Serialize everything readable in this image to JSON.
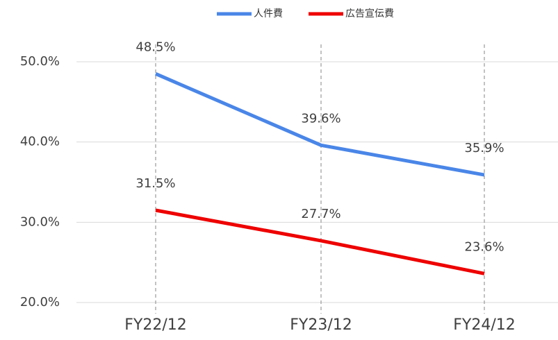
{
  "chart_data": {
    "type": "line",
    "categories": [
      "FY22/12",
      "FY23/12",
      "FY24/12"
    ],
    "series": [
      {
        "name": "人件費",
        "color": "#4a86e8",
        "values": [
          48.5,
          39.6,
          35.9
        ],
        "value_labels": [
          "48.5%",
          "39.6%",
          "35.9%"
        ]
      },
      {
        "name": "広告宣伝費",
        "color": "#ee0000",
        "values": [
          31.5,
          27.7,
          23.6
        ],
        "value_labels": [
          "31.5%",
          "27.7%",
          "23.6%"
        ]
      }
    ],
    "ylim": [
      20,
      50
    ],
    "yticks": [
      {
        "value": 20,
        "label": "20.0%"
      },
      {
        "value": 30,
        "label": "30.0%"
      },
      {
        "value": 40,
        "label": "40.0%"
      },
      {
        "value": 50,
        "label": "50.0%"
      }
    ],
    "grid": true,
    "legend": "top"
  }
}
